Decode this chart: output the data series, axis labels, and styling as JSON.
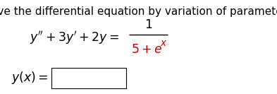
{
  "background_color": "#ffffff",
  "title_text": "Solve the differential equation by variation of parameters.",
  "title_fontsize": 11.0,
  "black_color": "#000000",
  "red_color": "#cc0000",
  "eq_fontsize": 12.5,
  "label_fontsize": 12.5,
  "fig_width": 3.93,
  "fig_height": 1.33,
  "dpi": 100
}
